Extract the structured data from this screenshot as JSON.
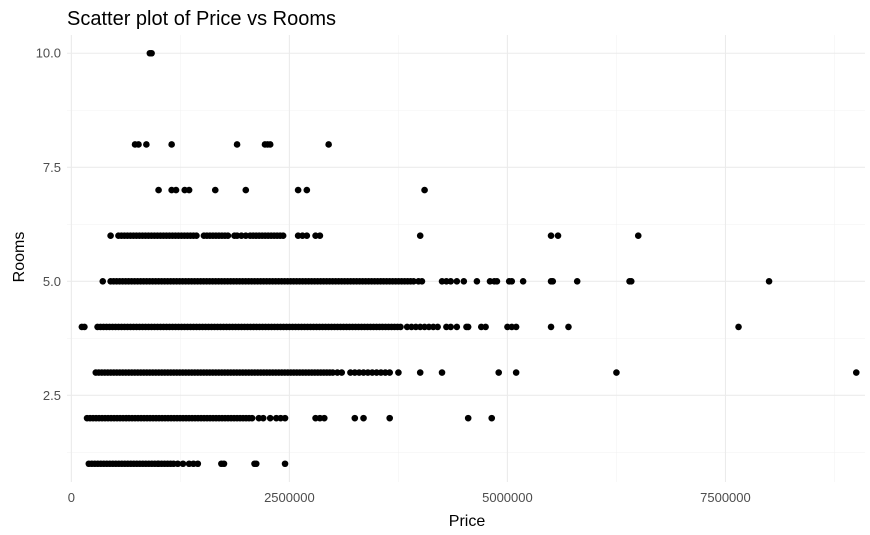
{
  "chart_data": {
    "type": "scatter",
    "title": "Scatter plot of Price vs Rooms",
    "xlabel": "Price",
    "ylabel": "Rooms",
    "xlim": [
      -50000,
      9100000
    ],
    "ylim": [
      0.6,
      10.4
    ],
    "x_ticks": [
      0,
      2500000,
      5000000,
      7500000
    ],
    "x_tick_labels": [
      "0",
      "2500000",
      "5000000",
      "7500000"
    ],
    "y_ticks": [
      2.5,
      5.0,
      7.5,
      10.0
    ],
    "y_tick_labels": [
      "2.5",
      "5.0",
      "7.5",
      "10.0"
    ],
    "grid": true,
    "legend": "none",
    "point_color": "#000000",
    "series": [
      {
        "name": "Rooms = 1",
        "y": 1,
        "dense_ranges": [
          [
            200000,
            1000000
          ],
          [
            1000000,
            1200000
          ]
        ],
        "x": [
          1220000,
          1280000,
          1350000,
          1400000,
          1450000,
          1720000,
          1750000,
          2100000,
          2120000,
          2450000
        ]
      },
      {
        "name": "Rooms = 2",
        "y": 2,
        "dense_ranges": [
          [
            180000,
            2100000
          ]
        ],
        "x": [
          2150000,
          2200000,
          2280000,
          2350000,
          2400000,
          2450000,
          2800000,
          2850000,
          2900000,
          3250000,
          3350000,
          3650000,
          4550000,
          4820000
        ]
      },
      {
        "name": "Rooms = 3",
        "y": 3,
        "dense_ranges": [
          [
            280000,
            3000000
          ]
        ],
        "x": [
          3050000,
          3100000,
          3200000,
          3250000,
          3300000,
          3350000,
          3400000,
          3450000,
          3500000,
          3550000,
          3600000,
          3650000,
          3750000,
          4000000,
          4250000,
          4900000,
          5100000,
          6250000,
          9000000
        ]
      },
      {
        "name": "Rooms = 4",
        "y": 4,
        "dense_ranges": [
          [
            300000,
            3800000
          ]
        ],
        "x": [
          120000,
          150000,
          3850000,
          3900000,
          3950000,
          4000000,
          4050000,
          4100000,
          4150000,
          4200000,
          4300000,
          4350000,
          4420000,
          4530000,
          4550000,
          4700000,
          4750000,
          5000000,
          5050000,
          5100000,
          5500000,
          5700000,
          7650000
        ]
      },
      {
        "name": "Rooms = 5",
        "y": 5,
        "dense_ranges": [
          [
            450000,
            3950000
          ]
        ],
        "x": [
          360000,
          3980000,
          4020000,
          4250000,
          4300000,
          4350000,
          4420000,
          4500000,
          4650000,
          4800000,
          4850000,
          4880000,
          5020000,
          5050000,
          5180000,
          5500000,
          5520000,
          5800000,
          6400000,
          6420000,
          8000000
        ]
      },
      {
        "name": "Rooms = 6",
        "y": 6,
        "dense_ranges": [
          [
            540000,
            1450000
          ],
          [
            1520000,
            1800000
          ],
          [
            2050000,
            2450000
          ]
        ],
        "x": [
          450000,
          1870000,
          1900000,
          1950000,
          2000000,
          2600000,
          2650000,
          2700000,
          2800000,
          2850000,
          4000000,
          5500000,
          5580000,
          6500000
        ]
      },
      {
        "name": "Rooms = 7",
        "y": 7,
        "dense_ranges": [],
        "x": [
          1000000,
          1150000,
          1200000,
          1300000,
          1350000,
          1650000,
          2000000,
          2600000,
          2700000,
          4050000
        ]
      },
      {
        "name": "Rooms = 8",
        "y": 8,
        "dense_ranges": [],
        "x": [
          730000,
          770000,
          860000,
          1150000,
          1900000,
          2220000,
          2250000,
          2280000,
          2950000
        ]
      },
      {
        "name": "Rooms = 10",
        "y": 10,
        "dense_ranges": [],
        "x": [
          900000,
          920000
        ]
      }
    ]
  }
}
